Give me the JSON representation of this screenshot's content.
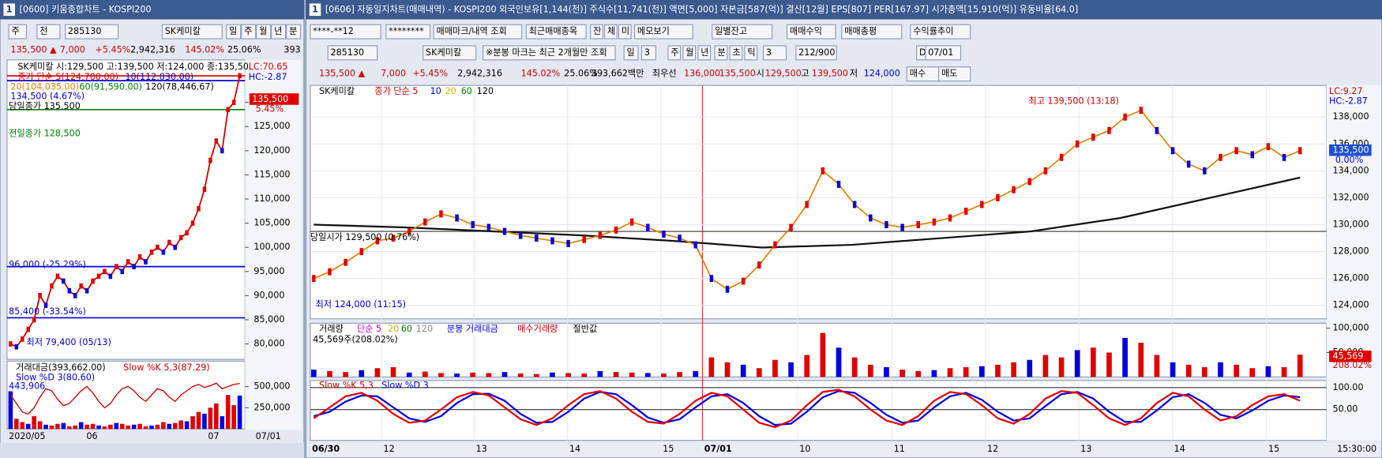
{
  "left": {
    "window_no": "1",
    "title": "[0600] 키움종합차트 - KOSPI200",
    "toolbar": [
      "주",
      "전",
      "285130",
      "SK케미칼",
      "일",
      "주",
      "월",
      "년",
      "분"
    ],
    "quote": [
      "135,500 ▲",
      "7,000",
      "+5.45%",
      "2,942,316",
      "145.02%",
      "25.06%",
      "393"
    ],
    "legend": [
      "SK케미칼 시:129,500 고:139,500 저:124,000 종:135,50",
      "종가 단순 5(124,700.00)",
      "10(112,030.00)",
      "20(104,035.00)",
      "60(91,590.00)",
      "120(78,446.67)",
      "134,500 (4.67%)",
      "당일종가 135,500",
      "전일종가 128,500",
      "96,000 (-25.29%)",
      "85,400 (-33.54%)",
      "최저 79,400 (05/13)",
      "LC:70.65",
      "HC:-2.87",
      "135,500",
      "5.45%"
    ],
    "lower_legend": [
      "거래대금(393,662.00)",
      "Slow %K 5,3(87.29)",
      "Slow %D 3(80.60)",
      "443,906"
    ],
    "dates": [
      "2020/05",
      "06",
      "07",
      "07/01"
    ],
    "chart": {
      "ylim": [
        76800,
        138800
      ],
      "yticks": [
        {
          "value": 130000,
          "label": "130,000"
        },
        {
          "value": 125000,
          "label": "125,000"
        },
        {
          "value": 120000,
          "label": "120,000"
        },
        {
          "value": 115000,
          "label": "115,000"
        },
        {
          "value": 110000,
          "label": "110,000"
        },
        {
          "value": 105000,
          "label": "105,000"
        },
        {
          "value": 100000,
          "label": "100,000"
        },
        {
          "value": 95000,
          "label": "95,000"
        },
        {
          "value": 90000,
          "label": "90,000"
        },
        {
          "value": 85000,
          "label": "85,000"
        },
        {
          "value": 80000,
          "label": "80,000"
        }
      ],
      "levels": [
        134500,
        135500,
        128500,
        96000,
        85400
      ],
      "close": [
        80000,
        79400,
        81000,
        83000,
        85000,
        90000,
        88000,
        92000,
        94000,
        93000,
        91000,
        90000,
        92000,
        91000,
        93000,
        94000,
        95000,
        94000,
        96000,
        95000,
        97000,
        96000,
        98000,
        97000,
        99000,
        100000,
        99000,
        101000,
        100000,
        102000,
        103000,
        105000,
        108000,
        112000,
        118000,
        122000,
        120000,
        128500,
        130000,
        135500
      ],
      "vol_ylim": [
        0,
        800000
      ],
      "vol_ticks": [
        {
          "value": 500000,
          "label": "500,000"
        },
        {
          "value": 250000,
          "label": "250,000"
        }
      ],
      "volume": [
        443906,
        120000,
        80000,
        60000,
        150000,
        90000,
        50000,
        40000,
        60000,
        70000,
        30000,
        40000,
        80000,
        50000,
        60000,
        40000,
        30000,
        50000,
        70000,
        60000,
        40000,
        50000,
        60000,
        30000,
        40000,
        50000,
        80000,
        60000,
        70000,
        100000,
        90000,
        150000,
        200000,
        180000,
        250000,
        300000,
        150000,
        400000,
        280000,
        393662
      ],
      "stoch_ylim": [
        -20,
        140
      ],
      "slow_k": [
        60,
        40,
        20,
        15,
        30,
        55,
        75,
        70,
        50,
        35,
        40,
        55,
        70,
        80,
        65,
        45,
        30,
        40,
        60,
        75,
        80,
        70,
        55,
        45,
        60,
        75,
        70,
        55,
        45,
        60,
        70,
        80,
        85,
        78,
        82,
        88,
        75,
        80,
        85,
        87.29
      ]
    }
  },
  "right": {
    "window_no": "1",
    "title": "[0606] 자동일지차트(매매내역) - KOSPI200 외국인보유[1,144(천)] 주식수[11,741(천)] 액면[5,000] 자본금[587(억)] 결산[12월] EPS[807] PER[167.97] 시가총액[15,910(억)] 유동비율[64.0]",
    "toolbar1": [
      "****-**12",
      "********",
      "매매마크/내역 조회",
      "최근매매종목",
      "잔",
      "체",
      "미",
      "메모보기",
      "일별잔고",
      "매매수익",
      "매매총평",
      "수익률추이"
    ],
    "toolbar2": [
      "285130",
      "SK케미칼",
      "※분봉 마크는 최근 2개월만 조회",
      "일",
      "3",
      "주",
      "월",
      "년",
      "분",
      "초",
      "틱",
      "3",
      "212/900",
      "D",
      "07/01"
    ],
    "quote": [
      "135,500 ▲",
      "7,000",
      "+5.45%",
      "2,942,316",
      "145.02%",
      "25.06%",
      "393,662백만",
      "최우선",
      "136,000",
      "135,500",
      "시",
      "129,500",
      "고",
      "139,500",
      "저",
      "124,000",
      "매수",
      "매도"
    ],
    "legend": [
      "SK케미칼",
      "종가 단순 5",
      "10",
      "20",
      "60",
      "120"
    ],
    "annotations": [
      "최고 139,500 (13:18)",
      "당일시가 129,500 (0.76%)",
      "최저 124,000 (11:15)",
      "LC:9.27",
      "HC:-2.87",
      "135,500",
      "0.00%"
    ],
    "volume_legend": [
      "거래량",
      "단순 5",
      "20",
      "60",
      "120",
      "분봉 거래대금",
      "매수거래량",
      "절반값",
      "45,569주(208.02%)",
      "45,569",
      "208.02%"
    ],
    "stoch_legend": [
      "Slow %K 5,3",
      "Slow %D 3"
    ],
    "dates": [
      "06/30",
      "12",
      "13",
      "14",
      "15",
      "07/01",
      "10",
      "11",
      "12",
      "13",
      "14",
      "15",
      "15:30:00"
    ],
    "chart": {
      "ylim": [
        123000,
        140350
      ],
      "yticks": [
        {
          "value": 138000,
          "label": "138,000"
        },
        {
          "value": 136000,
          "label": "136,000"
        },
        {
          "value": 134000,
          "label": "134,000"
        },
        {
          "value": 132000,
          "label": "132,000"
        },
        {
          "value": 130000,
          "label": "130,000"
        },
        {
          "value": 128000,
          "label": "128,000"
        },
        {
          "value": 126000,
          "label": "126,000"
        },
        {
          "value": 124000,
          "label": "124,000"
        }
      ],
      "levels": [
        129500
      ],
      "close": [
        126000,
        126500,
        127200,
        128000,
        128800,
        129000,
        129500,
        130200,
        130800,
        130500,
        130000,
        129800,
        129500,
        129200,
        129000,
        128800,
        128600,
        128900,
        129200,
        129600,
        130200,
        129800,
        129300,
        129000,
        128500,
        126000,
        125200,
        125800,
        127000,
        128500,
        129800,
        131500,
        134000,
        133000,
        131500,
        130500,
        130000,
        129800,
        130000,
        130200,
        130500,
        131000,
        131500,
        132000,
        132600,
        133200,
        134000,
        135000,
        136000,
        136500,
        137000,
        138000,
        138500,
        137000,
        135500,
        134500,
        134000,
        135000,
        135500,
        135200,
        135800,
        135000,
        135500
      ],
      "ma120": [
        130000,
        129800,
        129500,
        129200,
        128800,
        128300,
        128500,
        129000,
        129500,
        130500,
        132000,
        133500
      ],
      "vol_ylim": [
        0,
        110000
      ],
      "vol_ticks": [
        {
          "value": 100000,
          "label": "100,000"
        },
        {
          "value": 50000,
          "label": "50,000"
        }
      ],
      "volume": [
        15000,
        12000,
        10000,
        14000,
        18000,
        20000,
        9000,
        11000,
        8000,
        7000,
        9000,
        8000,
        10000,
        7000,
        6000,
        9000,
        8000,
        7000,
        12000,
        10000,
        9000,
        8000,
        7000,
        10000,
        12000,
        40000,
        30000,
        25000,
        18000,
        35000,
        30000,
        45000,
        90000,
        60000,
        40000,
        25000,
        20000,
        15000,
        12000,
        14000,
        18000,
        20000,
        22000,
        25000,
        30000,
        35000,
        45000,
        40000,
        55000,
        60000,
        50000,
        80000,
        70000,
        45000,
        30000,
        25000,
        20000,
        30000,
        25000,
        18000,
        22000,
        20000,
        45569
      ],
      "stoch_ylim": [
        -20,
        116
      ],
      "stoch_ticks": [
        {
          "value": 100,
          "label": "100.00"
        },
        {
          "value": 50,
          "label": "50.00"
        }
      ],
      "slow_k": [
        30,
        55,
        80,
        88,
        70,
        40,
        20,
        25,
        50,
        78,
        90,
        82,
        55,
        28,
        15,
        30,
        60,
        85,
        92,
        75,
        45,
        22,
        18,
        40,
        70,
        88,
        80,
        50,
        20,
        10,
        25,
        60,
        90,
        95,
        80,
        50,
        25,
        15,
        35,
        70,
        90,
        85,
        60,
        30,
        18,
        40,
        75,
        92,
        88,
        60,
        30,
        15,
        30,
        65,
        88,
        80,
        50,
        25,
        35,
        60,
        80,
        85,
        70
      ],
      "slow_d": [
        35,
        45,
        68,
        82,
        80,
        55,
        30,
        22,
        35,
        65,
        85,
        86,
        70,
        40,
        20,
        22,
        45,
        75,
        90,
        85,
        60,
        32,
        20,
        28,
        55,
        80,
        85,
        65,
        35,
        15,
        18,
        45,
        78,
        92,
        88,
        65,
        38,
        20,
        25,
        55,
        80,
        88,
        72,
        45,
        25,
        30,
        58,
        85,
        90,
        75,
        45,
        22,
        22,
        48,
        78,
        85,
        65,
        38,
        30,
        48,
        70,
        82,
        78
      ]
    }
  }
}
